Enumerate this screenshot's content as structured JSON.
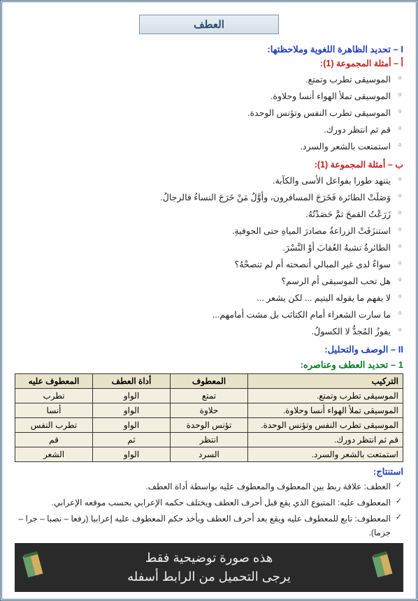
{
  "title": "العطف",
  "sections": {
    "s1_heading": "I – تحديد الظاهرة اللغوية وملاحظتها:",
    "group_a_heading": "أ – أمثلة المجموعة (1):",
    "group_a_items": [
      "الموسيقى تطرب وتمتع.",
      "الموسيقى تملأ الهواء أنسا وحلاوة.",
      "الموسيقى تطرب النفس وتؤنس الوحدة.",
      "قم ثم انتظر دورك.",
      "استمتعت بالشعر والسرد."
    ],
    "group_b_heading": "ب – أمثلة المجموعة (1):",
    "group_b_items": [
      "يتنهد طورا بفواعل الأسى والكآبة.",
      "وَصَلَتْ الطائرة فَخَرَجَ المسافرون، وأوَّلُ مَنْ خَرَجَ النساءُ فالرجالُ.",
      "زَرَعْتُ القمحَ ثمَّ حَصَدْتُهُ.",
      "استنزَفَتْ الزراعةُ مصادرَ المياهِ حتى الجوفيةِ.",
      "الطائرةُ تشبهُ العُقابَ أوْ النَّسْرَ.",
      "سواءٌ لدى غير المبالي أنصحته أم لم تنصحْهُ؟",
      "هل تحب الموسيقى أم الرسم؟",
      "لا يفهم ما يقوله اليتيم ... لكن يشعر ...",
      "ما سارت الشعراء أمام الكتائب بل مشت أمامهم...",
      "يفوزُ المُجدُّ  لا  الكسولُ."
    ],
    "s2_heading": "II – الوصف والتحليل:",
    "sub_heading": "1 – تحديد العطف وعناصره:",
    "table": {
      "columns": [
        "التركيب",
        "المعطوف",
        "أداة العطف",
        "المعطوف عليه"
      ],
      "rows": [
        [
          "الموسيقى تطرب وتمتع.",
          "تمتع",
          "الواو",
          "تطرب"
        ],
        [
          "الموسيقى تملأ الهواء أنسا وحلاوة.",
          "حلاوة",
          "الواو",
          "أنسا"
        ],
        [
          "الموسيقى تطرب النفس وتؤنس الوحدة.",
          "تؤنس الوحدة",
          "الواو",
          "تطرب النفس"
        ],
        [
          "قم ثم انتظر دورك.",
          "انتظر",
          "ثم",
          "قم"
        ],
        [
          "استمتعت بالشعر والسرد.",
          "السرد",
          "الواو",
          "الشعر"
        ]
      ],
      "col_widths": [
        "40%",
        "20%",
        "20%",
        "20%"
      ],
      "header_bg": "#e8e2c8",
      "cell_bg": "#f3efe0",
      "border_color": "#333333"
    },
    "conclusion_label": "استنتاج:",
    "conclusion_items": [
      "العطف: علاقة ربط بين المعطوف والمعطوف عليه بواسطة  أداة العطف.",
      "المعطوف عليه: المتبوع الذي يقع قبل أحرف العطف ويختلف حكمه الإعرابي بحسب موقعه الإعرابي.",
      "المعطوف: تابع للمعطوف عليه ويقع بعد أحرف العطف ويأخذ حكم المعطوف عليه إعرابيا (رفعا – نصبا – جرا – جزما)."
    ]
  },
  "footer": {
    "line1": "هذه صورة توضيحية فقط",
    "line2": "يرجى التحميل من الرابط أسفله"
  },
  "colors": {
    "blue": "#1f3fbf",
    "red": "#c62020",
    "green": "#0a7a2a",
    "banner_bg": "#2a2a2a",
    "banner_text": "#f0f0f0",
    "frame": "#4a6b8a"
  }
}
